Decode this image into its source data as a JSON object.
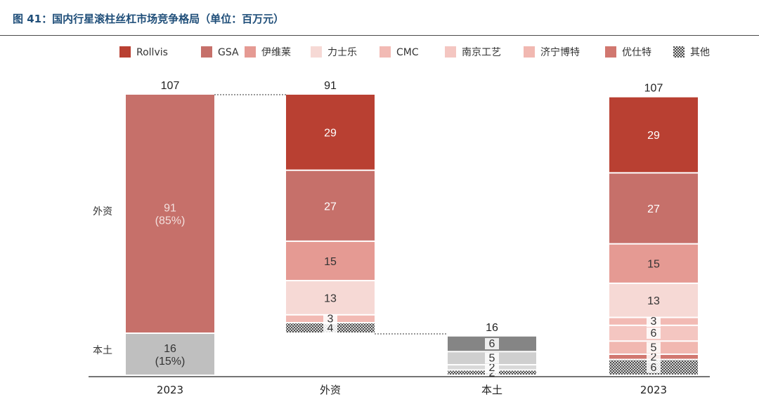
{
  "page_title": "图 41：国内行星滚柱丝杠市场竞争格局（单位：百万元）",
  "chart_data": {
    "type": "bar",
    "stacked": true,
    "variant": "waterfall",
    "title": "图 41：国内行星滚柱丝杠市场竞争格局（单位：百万元）",
    "unit": "百万元",
    "legend_position": "top",
    "legend": [
      {
        "name": "Rollvis",
        "color": "#b94032"
      },
      {
        "name": "GSA",
        "color": "#c6706a"
      },
      {
        "name": "伊维莱",
        "color": "#e59a93"
      },
      {
        "name": "力士乐",
        "color": "#f6d9d5"
      },
      {
        "name": "CMC",
        "color": "#f2bab4"
      },
      {
        "name": "南京工艺",
        "color": "#f4c6c1"
      },
      {
        "name": "济宁博特",
        "color": "#f1b8b1"
      },
      {
        "name": "优仕特",
        "color": "#d1776f"
      },
      {
        "name": "其他",
        "color": "#9a9a9a",
        "pattern": "hatched"
      }
    ],
    "row_labels": [
      {
        "label": "外资",
        "value": 91
      },
      {
        "label": "本土",
        "value": 16
      }
    ],
    "categories": [
      "2023",
      "外资",
      "本土",
      "2023"
    ],
    "totals": [
      "107",
      "91",
      "16",
      "107"
    ],
    "bars": [
      {
        "category": "2023",
        "segments": [
          {
            "name": "本土",
            "value": 16,
            "label": "16\n(15%)",
            "color": "#bfbfbf"
          },
          {
            "name": "外资",
            "value": 91,
            "label": "91\n(85%)",
            "color": "#c6706a"
          }
        ]
      },
      {
        "category": "外资",
        "base": 16,
        "segments": [
          {
            "name": "其他",
            "value": 4,
            "label": "4",
            "color": "#9a9a9a",
            "pattern": true
          },
          {
            "name": "CMC",
            "value": 3,
            "label": "3",
            "color": "#f2bab4"
          },
          {
            "name": "力士乐",
            "value": 13,
            "label": "13",
            "color": "#f6d9d5"
          },
          {
            "name": "伊维莱",
            "value": 15,
            "label": "15",
            "color": "#e59a93"
          },
          {
            "name": "GSA",
            "value": 27,
            "label": "27",
            "color": "#c6706a"
          },
          {
            "name": "Rollvis",
            "value": 29,
            "label": "29",
            "color": "#b94032"
          }
        ]
      },
      {
        "category": "本土",
        "base": 0,
        "segments": [
          {
            "name": "其他",
            "value": 2,
            "label": "2",
            "color": "#9a9a9a",
            "pattern": true
          },
          {
            "name": "优仕特",
            "value": 2,
            "label": "2",
            "color": "#d9d9d9"
          },
          {
            "name": "济宁博特",
            "value": 5,
            "label": "5",
            "color": "#cfcfcf"
          },
          {
            "name": "南京工艺",
            "value": 6,
            "label": "6",
            "color": "#858585"
          }
        ]
      },
      {
        "category": "2023",
        "segments": [
          {
            "name": "其他",
            "value": 6,
            "label": "6",
            "color": "#9a9a9a",
            "pattern": true
          },
          {
            "name": "优仕特",
            "value": 2,
            "label": "2",
            "color": "#d1776f"
          },
          {
            "name": "济宁博特",
            "value": 5,
            "label": "5",
            "color": "#f1b8b1"
          },
          {
            "name": "南京工艺",
            "value": 6,
            "label": "6",
            "color": "#f4c6c1"
          },
          {
            "name": "CMC",
            "value": 3,
            "label": "3",
            "color": "#f2bab4"
          },
          {
            "name": "力士乐",
            "value": 13,
            "label": "13",
            "color": "#f6d9d5"
          },
          {
            "name": "伊维莱",
            "value": 15,
            "label": "15",
            "color": "#e59a93"
          },
          {
            "name": "GSA",
            "value": 27,
            "label": "27",
            "color": "#c6706a"
          },
          {
            "name": "Rollvis",
            "value": 29,
            "label": "29",
            "color": "#b94032"
          }
        ]
      }
    ],
    "connectors": [
      {
        "from": 0,
        "to": 1,
        "level": 107
      },
      {
        "from": 1,
        "to": 2,
        "level": 16
      }
    ],
    "ylim": [
      0,
      107
    ],
    "grid": false
  }
}
